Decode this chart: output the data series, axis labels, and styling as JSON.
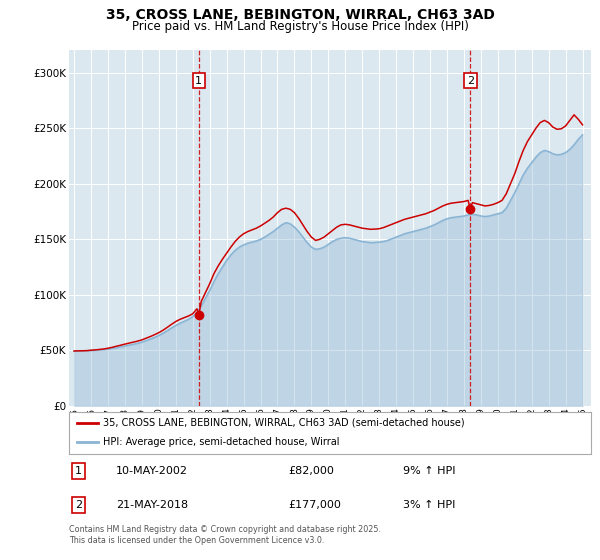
{
  "title": "35, CROSS LANE, BEBINGTON, WIRRAL, CH63 3AD",
  "subtitle": "Price paid vs. HM Land Registry's House Price Index (HPI)",
  "title_fontsize": 10,
  "subtitle_fontsize": 8.5,
  "background_color": "#ffffff",
  "plot_bg_color": "#dce8f0",
  "grid_color": "#ffffff",
  "ylim": [
    0,
    320000
  ],
  "yticks": [
    0,
    50000,
    100000,
    150000,
    200000,
    250000,
    300000
  ],
  "xlim_start": 1994.7,
  "xlim_end": 2025.5,
  "xticks": [
    1995,
    1996,
    1997,
    1998,
    1999,
    2000,
    2001,
    2002,
    2003,
    2004,
    2005,
    2006,
    2007,
    2008,
    2009,
    2010,
    2011,
    2012,
    2013,
    2014,
    2015,
    2016,
    2017,
    2018,
    2019,
    2020,
    2021,
    2022,
    2023,
    2024,
    2025
  ],
  "sale1_date": 2002.36,
  "sale1_price": 82000,
  "sale1_label": "1",
  "sale1_text": "10-MAY-2002",
  "sale1_amount": "£82,000",
  "sale1_hpi": "9% ↑ HPI",
  "sale2_date": 2018.38,
  "sale2_price": 177000,
  "sale2_label": "2",
  "sale2_text": "21-MAY-2018",
  "sale2_amount": "£177,000",
  "sale2_hpi": "3% ↑ HPI",
  "legend_line1": "35, CROSS LANE, BEBINGTON, WIRRAL, CH63 3AD (semi-detached house)",
  "legend_line2": "HPI: Average price, semi-detached house, Wirral",
  "property_color": "#cc0000",
  "hpi_color": "#8ab4d4",
  "footer_text": "Contains HM Land Registry data © Crown copyright and database right 2025.\nThis data is licensed under the Open Government Licence v3.0.",
  "hpi_data": [
    [
      1995.0,
      49500
    ],
    [
      1995.25,
      49600
    ],
    [
      1995.5,
      49700
    ],
    [
      1995.75,
      49800
    ],
    [
      1996.0,
      50000
    ],
    [
      1996.25,
      50200
    ],
    [
      1996.5,
      50500
    ],
    [
      1996.75,
      50800
    ],
    [
      1997.0,
      51200
    ],
    [
      1997.25,
      51800
    ],
    [
      1997.5,
      52500
    ],
    [
      1997.75,
      53200
    ],
    [
      1998.0,
      54000
    ],
    [
      1998.25,
      54800
    ],
    [
      1998.5,
      55600
    ],
    [
      1998.75,
      56400
    ],
    [
      1999.0,
      57500
    ],
    [
      1999.25,
      58800
    ],
    [
      1999.5,
      60200
    ],
    [
      1999.75,
      61800
    ],
    [
      2000.0,
      63500
    ],
    [
      2000.25,
      65500
    ],
    [
      2000.5,
      67800
    ],
    [
      2000.75,
      70200
    ],
    [
      2001.0,
      72500
    ],
    [
      2001.25,
      74500
    ],
    [
      2001.5,
      76200
    ],
    [
      2001.75,
      78000
    ],
    [
      2002.0,
      80500
    ],
    [
      2002.25,
      84000
    ],
    [
      2002.5,
      90000
    ],
    [
      2002.75,
      97000
    ],
    [
      2003.0,
      104000
    ],
    [
      2003.25,
      112000
    ],
    [
      2003.5,
      119000
    ],
    [
      2003.75,
      125000
    ],
    [
      2004.0,
      131000
    ],
    [
      2004.25,
      136000
    ],
    [
      2004.5,
      140000
    ],
    [
      2004.75,
      143000
    ],
    [
      2005.0,
      145000
    ],
    [
      2005.25,
      146500
    ],
    [
      2005.5,
      147500
    ],
    [
      2005.75,
      148500
    ],
    [
      2006.0,
      150000
    ],
    [
      2006.25,
      152000
    ],
    [
      2006.5,
      154500
    ],
    [
      2006.75,
      157000
    ],
    [
      2007.0,
      160000
    ],
    [
      2007.25,
      163000
    ],
    [
      2007.5,
      165000
    ],
    [
      2007.75,
      164000
    ],
    [
      2008.0,
      161000
    ],
    [
      2008.25,
      157000
    ],
    [
      2008.5,
      152000
    ],
    [
      2008.75,
      147000
    ],
    [
      2009.0,
      143000
    ],
    [
      2009.25,
      141000
    ],
    [
      2009.5,
      141500
    ],
    [
      2009.75,
      143000
    ],
    [
      2010.0,
      145500
    ],
    [
      2010.25,
      148000
    ],
    [
      2010.5,
      150000
    ],
    [
      2010.75,
      151000
    ],
    [
      2011.0,
      151500
    ],
    [
      2011.25,
      151000
    ],
    [
      2011.5,
      150000
    ],
    [
      2011.75,
      149000
    ],
    [
      2012.0,
      148000
    ],
    [
      2012.25,
      147500
    ],
    [
      2012.5,
      147000
    ],
    [
      2012.75,
      147200
    ],
    [
      2013.0,
      147500
    ],
    [
      2013.25,
      148000
    ],
    [
      2013.5,
      149000
    ],
    [
      2013.75,
      150500
    ],
    [
      2014.0,
      152000
    ],
    [
      2014.25,
      153500
    ],
    [
      2014.5,
      155000
    ],
    [
      2014.75,
      156000
    ],
    [
      2015.0,
      157000
    ],
    [
      2015.25,
      158000
    ],
    [
      2015.5,
      159000
    ],
    [
      2015.75,
      160000
    ],
    [
      2016.0,
      161500
    ],
    [
      2016.25,
      163000
    ],
    [
      2016.5,
      165000
    ],
    [
      2016.75,
      167000
    ],
    [
      2017.0,
      168500
    ],
    [
      2017.25,
      169500
    ],
    [
      2017.5,
      170000
    ],
    [
      2017.75,
      170500
    ],
    [
      2018.0,
      171000
    ],
    [
      2018.25,
      172000
    ],
    [
      2018.5,
      172500
    ],
    [
      2018.75,
      172000
    ],
    [
      2019.0,
      171000
    ],
    [
      2019.25,
      170500
    ],
    [
      2019.5,
      171000
    ],
    [
      2019.75,
      172000
    ],
    [
      2020.0,
      173000
    ],
    [
      2020.25,
      174000
    ],
    [
      2020.5,
      178000
    ],
    [
      2020.75,
      185000
    ],
    [
      2021.0,
      192000
    ],
    [
      2021.25,
      200000
    ],
    [
      2021.5,
      208000
    ],
    [
      2021.75,
      214000
    ],
    [
      2022.0,
      219000
    ],
    [
      2022.25,
      224000
    ],
    [
      2022.5,
      228000
    ],
    [
      2022.75,
      230000
    ],
    [
      2023.0,
      229000
    ],
    [
      2023.25,
      227000
    ],
    [
      2023.5,
      226000
    ],
    [
      2023.75,
      226500
    ],
    [
      2024.0,
      228000
    ],
    [
      2024.25,
      231000
    ],
    [
      2024.5,
      235000
    ],
    [
      2024.75,
      240000
    ],
    [
      2025.0,
      244000
    ]
  ],
  "property_data": [
    [
      1995.0,
      49500
    ],
    [
      1995.25,
      49600
    ],
    [
      1995.5,
      49700
    ],
    [
      1995.75,
      49800
    ],
    [
      1996.0,
      50200
    ],
    [
      1996.25,
      50500
    ],
    [
      1996.5,
      50900
    ],
    [
      1996.75,
      51300
    ],
    [
      1997.0,
      52000
    ],
    [
      1997.25,
      52800
    ],
    [
      1997.5,
      53800
    ],
    [
      1997.75,
      54700
    ],
    [
      1998.0,
      55700
    ],
    [
      1998.25,
      56600
    ],
    [
      1998.5,
      57500
    ],
    [
      1998.75,
      58400
    ],
    [
      1999.0,
      59500
    ],
    [
      1999.25,
      61000
    ],
    [
      1999.5,
      62500
    ],
    [
      1999.75,
      64200
    ],
    [
      2000.0,
      66000
    ],
    [
      2000.25,
      68200
    ],
    [
      2000.5,
      70800
    ],
    [
      2000.75,
      73500
    ],
    [
      2001.0,
      76000
    ],
    [
      2001.25,
      78000
    ],
    [
      2001.5,
      79500
    ],
    [
      2001.75,
      81000
    ],
    [
      2002.0,
      83000
    ],
    [
      2002.25,
      87500
    ],
    [
      2002.36,
      82000
    ],
    [
      2002.5,
      94000
    ],
    [
      2002.75,
      102000
    ],
    [
      2003.0,
      110000
    ],
    [
      2003.25,
      119000
    ],
    [
      2003.5,
      126000
    ],
    [
      2003.75,
      132000
    ],
    [
      2004.0,
      137500
    ],
    [
      2004.25,
      143000
    ],
    [
      2004.5,
      148000
    ],
    [
      2004.75,
      152000
    ],
    [
      2005.0,
      155000
    ],
    [
      2005.25,
      157000
    ],
    [
      2005.5,
      158500
    ],
    [
      2005.75,
      160000
    ],
    [
      2006.0,
      162000
    ],
    [
      2006.25,
      164500
    ],
    [
      2006.5,
      167000
    ],
    [
      2006.75,
      170000
    ],
    [
      2007.0,
      174000
    ],
    [
      2007.25,
      177000
    ],
    [
      2007.5,
      178000
    ],
    [
      2007.75,
      177000
    ],
    [
      2008.0,
      174000
    ],
    [
      2008.25,
      169000
    ],
    [
      2008.5,
      163000
    ],
    [
      2008.75,
      157000
    ],
    [
      2009.0,
      152000
    ],
    [
      2009.25,
      149000
    ],
    [
      2009.5,
      150000
    ],
    [
      2009.75,
      152000
    ],
    [
      2010.0,
      155000
    ],
    [
      2010.25,
      158000
    ],
    [
      2010.5,
      161000
    ],
    [
      2010.75,
      163000
    ],
    [
      2011.0,
      163500
    ],
    [
      2011.25,
      163000
    ],
    [
      2011.5,
      162000
    ],
    [
      2011.75,
      161000
    ],
    [
      2012.0,
      160000
    ],
    [
      2012.25,
      159500
    ],
    [
      2012.5,
      159000
    ],
    [
      2012.75,
      159200
    ],
    [
      2013.0,
      159500
    ],
    [
      2013.25,
      160500
    ],
    [
      2013.5,
      162000
    ],
    [
      2013.75,
      163500
    ],
    [
      2014.0,
      165000
    ],
    [
      2014.25,
      166500
    ],
    [
      2014.5,
      168000
    ],
    [
      2014.75,
      169000
    ],
    [
      2015.0,
      170000
    ],
    [
      2015.25,
      171000
    ],
    [
      2015.5,
      172000
    ],
    [
      2015.75,
      173000
    ],
    [
      2016.0,
      174500
    ],
    [
      2016.25,
      176000
    ],
    [
      2016.5,
      178000
    ],
    [
      2016.75,
      180000
    ],
    [
      2017.0,
      181500
    ],
    [
      2017.25,
      182500
    ],
    [
      2017.5,
      183000
    ],
    [
      2017.75,
      183500
    ],
    [
      2018.0,
      184000
    ],
    [
      2018.25,
      185000
    ],
    [
      2018.38,
      177000
    ],
    [
      2018.5,
      183000
    ],
    [
      2018.75,
      182000
    ],
    [
      2019.0,
      181000
    ],
    [
      2019.25,
      180000
    ],
    [
      2019.5,
      180500
    ],
    [
      2019.75,
      181500
    ],
    [
      2020.0,
      183000
    ],
    [
      2020.25,
      185000
    ],
    [
      2020.5,
      191000
    ],
    [
      2020.75,
      200000
    ],
    [
      2021.0,
      209000
    ],
    [
      2021.25,
      220000
    ],
    [
      2021.5,
      230000
    ],
    [
      2021.75,
      238000
    ],
    [
      2022.0,
      244000
    ],
    [
      2022.25,
      250000
    ],
    [
      2022.5,
      255000
    ],
    [
      2022.75,
      257000
    ],
    [
      2023.0,
      255000
    ],
    [
      2023.25,
      251000
    ],
    [
      2023.5,
      249000
    ],
    [
      2023.75,
      249500
    ],
    [
      2024.0,
      252000
    ],
    [
      2024.25,
      257000
    ],
    [
      2024.5,
      262000
    ],
    [
      2024.75,
      258000
    ],
    [
      2025.0,
      253000
    ]
  ]
}
